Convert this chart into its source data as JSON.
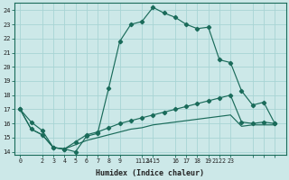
{
  "xlabel": "Humidex (Indice chaleur)",
  "bg_color": "#cce8e8",
  "line_color": "#1a6b5a",
  "grid_color": "#a8d4d4",
  "xlim": [
    -0.5,
    24
  ],
  "ylim": [
    13.8,
    24.5
  ],
  "yticks": [
    14,
    15,
    16,
    17,
    18,
    19,
    20,
    21,
    22,
    23,
    24
  ],
  "xtick_positions": [
    0,
    2,
    3,
    4,
    5,
    6,
    7,
    8,
    9,
    11,
    12,
    14,
    15,
    16,
    17,
    18,
    19,
    21,
    22,
    23
  ],
  "xtick_labels": [
    "0",
    "2",
    "3",
    "4",
    "5",
    "6",
    "7",
    "8",
    "9",
    "1112",
    "1415",
    "16",
    "17",
    "18",
    "19",
    "2122",
    "23",
    "",
    "",
    ""
  ],
  "curve1_x": [
    0,
    1,
    2,
    3,
    4,
    5,
    6,
    7,
    8,
    9,
    10,
    11,
    12,
    13,
    14,
    15,
    16,
    17,
    18,
    19,
    20,
    21,
    22,
    23
  ],
  "curve1_y": [
    17.0,
    16.1,
    15.5,
    14.3,
    14.2,
    14.0,
    15.1,
    15.3,
    18.5,
    21.8,
    23.0,
    23.2,
    24.2,
    23.8,
    23.5,
    23.0,
    22.7,
    22.8,
    20.5,
    20.3,
    18.3,
    17.3,
    17.5,
    16.0
  ],
  "curve2_x": [
    0,
    1,
    2,
    3,
    4,
    5,
    6,
    7,
    8,
    9,
    10,
    11,
    12,
    13,
    14,
    15,
    16,
    17,
    18,
    19,
    20,
    21,
    22,
    23
  ],
  "curve2_y": [
    17.0,
    15.6,
    15.2,
    14.3,
    14.2,
    14.7,
    15.2,
    15.4,
    15.7,
    16.0,
    16.2,
    16.4,
    16.6,
    16.8,
    17.0,
    17.2,
    17.4,
    17.6,
    17.8,
    18.0,
    16.1,
    16.0,
    16.1,
    16.0
  ],
  "curve3_x": [
    0,
    1,
    2,
    3,
    4,
    5,
    6,
    7,
    8,
    9,
    10,
    11,
    12,
    13,
    14,
    15,
    16,
    17,
    18,
    19,
    20,
    21,
    22,
    23
  ],
  "curve3_y": [
    17.0,
    15.6,
    15.2,
    14.3,
    14.2,
    14.5,
    14.8,
    15.0,
    15.2,
    15.4,
    15.6,
    15.7,
    15.9,
    16.0,
    16.1,
    16.2,
    16.3,
    16.4,
    16.5,
    16.6,
    15.8,
    15.9,
    15.9,
    15.9
  ],
  "marker": "D",
  "markersize": 2.2,
  "linewidth": 0.85
}
